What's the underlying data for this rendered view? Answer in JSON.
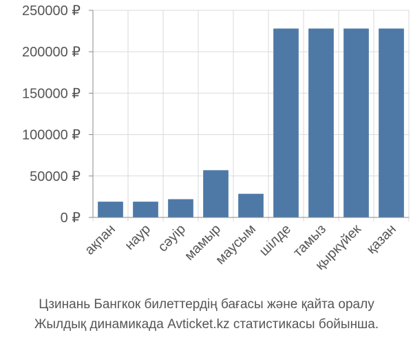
{
  "chart_data": {
    "type": "bar",
    "categories": [
      "ақпан",
      "наур",
      "сәуір",
      "мамыр",
      "маусым",
      "шілде",
      "тамыз",
      "қыркүйек",
      "қазан"
    ],
    "values": [
      19000,
      19000,
      22000,
      57000,
      28500,
      228000,
      228000,
      228000,
      228000
    ],
    "yticks": [
      "0 ₽",
      "50000 ₽",
      "100000 ₽",
      "150000 ₽",
      "200000 ₽",
      "250000 ₽"
    ],
    "ylim": [
      0,
      250000
    ],
    "grid": true,
    "bar_color": "#4e79a7",
    "title": "",
    "xlabel": "",
    "ylabel": ""
  },
  "caption": {
    "line1": "Цзинань Бангкок билеттердің бағасы және қайта оралу",
    "line2": "Жылдық динамикада Avticket.kz статистикасы бойынша."
  }
}
